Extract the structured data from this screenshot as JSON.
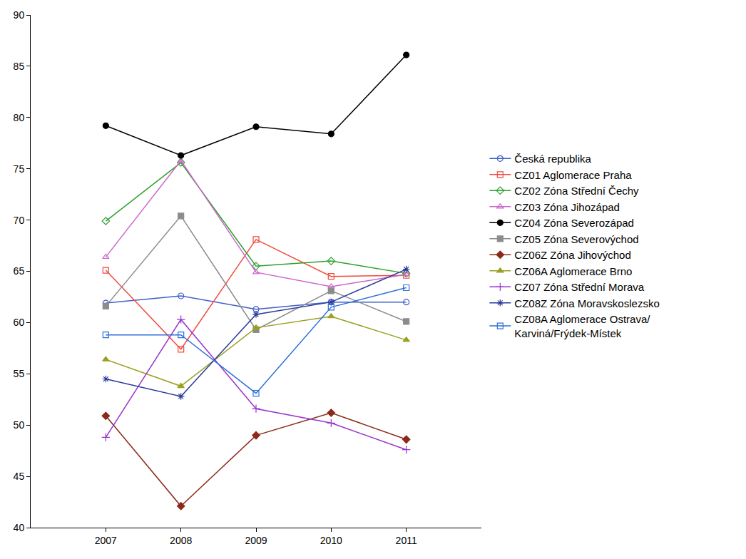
{
  "chart_data": {
    "type": "line",
    "x": [
      2007,
      2008,
      2009,
      2010,
      2011
    ],
    "xlim": [
      2006,
      2012
    ],
    "xticks": [
      2007,
      2008,
      2009,
      2010,
      2011
    ],
    "ylim": [
      40,
      90
    ],
    "yticks": [
      40,
      45,
      50,
      55,
      60,
      65,
      70,
      75,
      80,
      85,
      90
    ],
    "grid": false,
    "legend": "right",
    "series": [
      {
        "name": "Česká republika",
        "color": "#3f5fc8",
        "marker": "circle-open",
        "values": [
          61.9,
          62.6,
          61.3,
          62.0,
          62.0
        ]
      },
      {
        "name": "CZ01 Aglomerace Praha",
        "color": "#f04a3c",
        "marker": "square-open",
        "values": [
          65.1,
          57.4,
          68.1,
          64.5,
          64.6
        ]
      },
      {
        "name": "CZ02 Zóna Střední Čechy",
        "color": "#2ca02c",
        "marker": "diamond-open",
        "values": [
          69.9,
          75.6,
          65.5,
          66.0,
          64.8
        ]
      },
      {
        "name": "CZ03 Zóna Jihozápad",
        "color": "#cc66cc",
        "marker": "triangle-open",
        "values": [
          66.4,
          75.8,
          64.9,
          63.5,
          64.7
        ]
      },
      {
        "name": "CZ04 Zóna Severozápad",
        "color": "#000000",
        "marker": "circle",
        "values": [
          79.2,
          76.3,
          79.1,
          78.4,
          86.1
        ]
      },
      {
        "name": "CZ05 Zóna Severovýchod",
        "color": "#8c8c8c",
        "marker": "square",
        "values": [
          61.6,
          70.4,
          59.3,
          63.1,
          60.1
        ]
      },
      {
        "name": "CZ06Z Zóna Jihovýchod",
        "color": "#8b2a1a",
        "marker": "diamond",
        "values": [
          50.9,
          42.1,
          49.0,
          51.2,
          48.6
        ]
      },
      {
        "name": "CZ06A Aglomerace Brno",
        "color": "#9aa020",
        "marker": "triangle",
        "values": [
          56.4,
          53.8,
          59.5,
          60.6,
          58.3
        ]
      },
      {
        "name": "CZ07 Zóna Střední Morava",
        "color": "#9933cc",
        "marker": "plus",
        "values": [
          48.8,
          60.3,
          51.6,
          50.2,
          47.6
        ]
      },
      {
        "name": "CZ08Z Zóna Moravskoslezsko",
        "color": "#2a3a9a",
        "marker": "asterisk",
        "values": [
          54.5,
          52.8,
          60.8,
          62.0,
          65.2
        ]
      },
      {
        "name": "CZ08A Aglomerace Ostrava/ Karviná/Frýdek-Místek",
        "color": "#2e6fd8",
        "marker": "square-open",
        "values": [
          58.8,
          58.8,
          53.1,
          61.5,
          63.4
        ]
      }
    ]
  }
}
